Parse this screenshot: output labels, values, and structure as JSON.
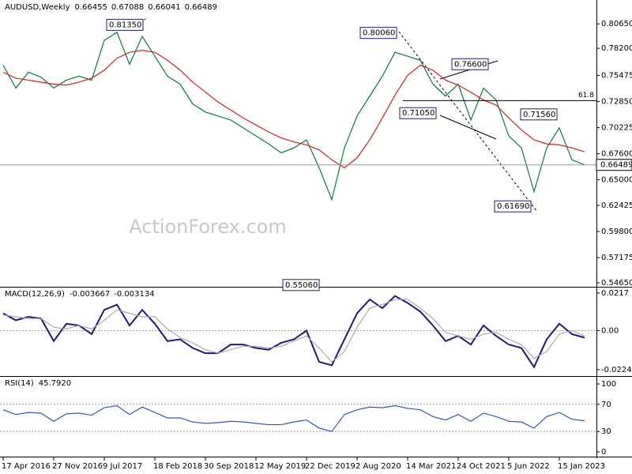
{
  "chart_data": [
    {
      "type": "line",
      "title": "AUDUSD,Weekly",
      "ohlc": [
        0.66455,
        0.67088,
        0.66041,
        0.66489
      ],
      "categories": [
        "17 Apr 2016",
        null,
        null,
        null,
        "27 Nov 2016",
        null,
        null,
        null,
        "9 Jul 2017",
        null,
        null,
        null,
        "18 Feb 2018",
        null,
        null,
        null,
        "30 Sep 2018",
        null,
        null,
        null,
        "12 May 2019",
        null,
        null,
        null,
        "22 Dec 2019",
        null,
        null,
        null,
        "2 Aug 2020",
        null,
        null,
        null,
        "14 Mar 2021",
        null,
        null,
        null,
        "24 Oct 2021",
        null,
        null,
        null,
        "5 Jun 2022",
        null,
        null,
        null,
        "15 Jan 2023",
        null,
        null
      ],
      "series": [
        {
          "color": "#0b7d3a",
          "values": [
            0.765,
            0.742,
            0.758,
            0.753,
            0.742,
            0.75,
            0.754,
            0.75,
            0.79,
            0.798,
            0.766,
            0.794,
            0.774,
            0.754,
            0.746,
            0.726,
            0.718,
            0.714,
            0.71,
            0.702,
            0.694,
            0.686,
            0.677,
            0.682,
            0.69,
            0.662,
            0.63,
            0.682,
            0.714,
            0.734,
            0.754,
            0.778,
            0.774,
            0.77,
            0.746,
            0.734,
            0.746,
            0.71,
            0.742,
            0.73,
            0.694,
            0.682,
            0.638,
            0.682,
            0.702,
            0.67,
            0.66489
          ]
        },
        {
          "color": "#e02020",
          "values": [
            0.758,
            0.752,
            0.75,
            0.748,
            0.746,
            0.745,
            0.748,
            0.752,
            0.76,
            0.772,
            0.778,
            0.78,
            0.778,
            0.77,
            0.76,
            0.748,
            0.738,
            0.728,
            0.72,
            0.712,
            0.705,
            0.698,
            0.692,
            0.688,
            0.685,
            0.68,
            0.67,
            0.662,
            0.672,
            0.69,
            0.712,
            0.735,
            0.755,
            0.765,
            0.76,
            0.75,
            0.745,
            0.738,
            0.73,
            0.725,
            0.712,
            0.7,
            0.69,
            0.686,
            0.685,
            0.682,
            0.678
          ]
        }
      ],
      "ylim": [
        0.5433,
        0.8289
      ],
      "yticks": [
        {
          "value": 0.8065,
          "label": "0.80650"
        },
        {
          "value": 0.782,
          "label": "0.78200"
        },
        {
          "value": 0.75475,
          "label": "0.75475"
        },
        {
          "value": 0.7285,
          "label": "0.72850"
        },
        {
          "value": 0.70225,
          "label": "0.70225"
        },
        {
          "value": 0.676,
          "label": "0.67600"
        },
        {
          "value": 0.65,
          "label": "0.65000"
        },
        {
          "value": 0.62425,
          "label": "0.62425"
        },
        {
          "value": 0.598,
          "label": "0.59800"
        },
        {
          "value": 0.57175,
          "label": "0.57175"
        },
        {
          "value": 0.5465,
          "label": "0.54650"
        }
      ],
      "last": 0.66489,
      "fib": {
        "ratio": 61.8,
        "price": 0.7294
      },
      "annotations": [
        {
          "value": 0.8135,
          "label": "0.81350"
        },
        {
          "value": 0.8006,
          "label": "0.80060"
        },
        {
          "value": 0.766,
          "label": "0.76600"
        },
        {
          "value": 0.7105,
          "label": "0.71050"
        },
        {
          "value": 0.7156,
          "label": "0.71560"
        },
        {
          "value": 0.6169,
          "label": "0.61690"
        },
        {
          "value": 0.5506,
          "label": "0.55060"
        }
      ],
      "watermark": "ActionForex.com"
    },
    {
      "type": "line",
      "title": "MACD(12,26,9)",
      "header_values": [
        -0.003667,
        -0.003134
      ],
      "series": [
        {
          "color": "#1c1c7a",
          "values": [
            0.01,
            0.006,
            0.008,
            0.007,
            -0.006,
            0.004,
            0.003,
            -0.002,
            0.012,
            0.015,
            0.003,
            0.012,
            0.004,
            -0.006,
            -0.005,
            -0.01,
            -0.013,
            -0.013,
            -0.008,
            -0.008,
            -0.01,
            -0.011,
            -0.007,
            -0.005,
            0.0,
            -0.018,
            -0.02,
            -0.005,
            0.01,
            0.018,
            0.013,
            0.02,
            0.016,
            0.011,
            0.003,
            -0.006,
            -0.003,
            -0.008,
            0.003,
            -0.003,
            -0.008,
            -0.01,
            -0.021,
            -0.005,
            0.004,
            -0.002,
            -0.004
          ]
        },
        {
          "color": "#aaaaaa",
          "values": [
            0.009,
            0.008,
            0.007,
            0.007,
            0.002,
            0.001,
            0.003,
            0.001,
            0.006,
            0.012,
            0.01,
            0.008,
            0.008,
            0.001,
            -0.004,
            -0.007,
            -0.011,
            -0.013,
            -0.011,
            -0.009,
            -0.009,
            -0.01,
            -0.009,
            -0.006,
            -0.003,
            -0.01,
            -0.018,
            -0.012,
            0.002,
            0.013,
            0.015,
            0.018,
            0.018,
            0.013,
            0.007,
            -0.001,
            -0.003,
            -0.005,
            -0.002,
            -0.001,
            -0.005,
            -0.008,
            -0.016,
            -0.012,
            -0.002,
            0.0,
            -0.003
          ]
        }
      ],
      "ylim": [
        -0.0257,
        0.0244
      ],
      "yticks": [
        0.0217,
        {
          "value": 0,
          "label": "0.00"
        },
        -0.022445
      ],
      "levels": [
        0
      ]
    },
    {
      "type": "line",
      "title": "RSI(14)",
      "header_values": [
        {
          "value": 45.792,
          "label": "45.7920"
        }
      ],
      "series": [
        {
          "color": "#3355cc",
          "values": [
            62,
            55,
            58,
            57,
            45,
            56,
            57,
            54,
            65,
            68,
            55,
            66,
            58,
            50,
            50,
            44,
            42,
            43,
            45,
            44,
            42,
            40,
            40,
            44,
            47,
            35,
            30,
            55,
            62,
            66,
            65,
            68,
            64,
            62,
            52,
            47,
            55,
            45,
            57,
            52,
            45,
            44,
            35,
            52,
            58,
            48,
            45.792
          ]
        }
      ],
      "ylim": [
        -7,
        109.3
      ],
      "yticks": [
        100,
        70,
        30,
        0
      ],
      "levels": [
        70,
        30
      ]
    }
  ]
}
